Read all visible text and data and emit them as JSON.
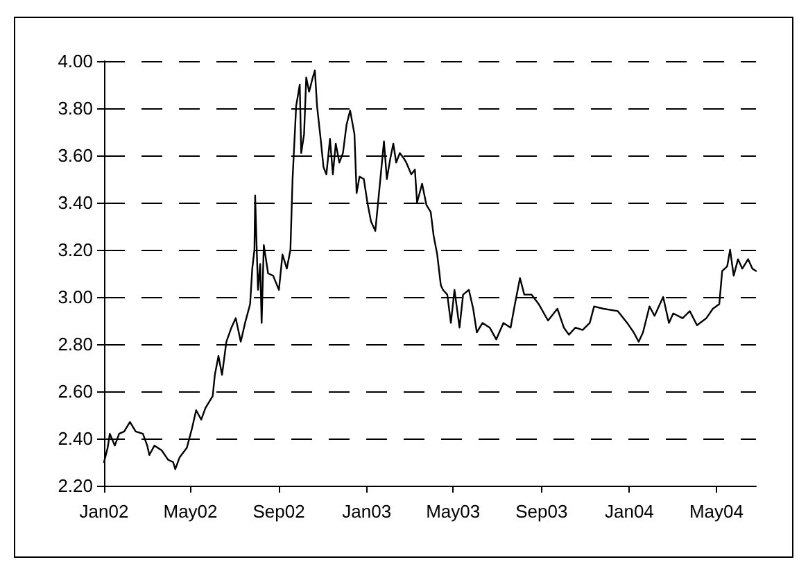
{
  "chart_data": {
    "type": "line",
    "marker": "none",
    "line_style": "solid",
    "grid": "y",
    "xlim": [
      "2002-01-01",
      "2004-06-25"
    ],
    "xticks": [
      {
        "value": "2002-01-01",
        "label": "Jan02"
      },
      {
        "value": "2002-05-01",
        "label": "May02"
      },
      {
        "value": "2002-09-01",
        "label": "Sep02"
      },
      {
        "value": "2003-01-01",
        "label": "Jan03"
      },
      {
        "value": "2003-05-01",
        "label": "May03"
      },
      {
        "value": "2003-09-01",
        "label": "Sep03"
      },
      {
        "value": "2004-01-01",
        "label": "Jan04"
      },
      {
        "value": "2004-05-01",
        "label": "May04"
      }
    ],
    "ylim": [
      2.2,
      4.0
    ],
    "yticks": [
      {
        "value": 2.2,
        "label": "2.20"
      },
      {
        "value": 2.4,
        "label": "2.40"
      },
      {
        "value": 2.6,
        "label": "2.60"
      },
      {
        "value": 2.8,
        "label": "2.80"
      },
      {
        "value": 3.0,
        "label": "3.00"
      },
      {
        "value": 3.2,
        "label": "3.20"
      },
      {
        "value": 3.4,
        "label": "3.40"
      },
      {
        "value": 3.6,
        "label": "3.60"
      },
      {
        "value": 3.8,
        "label": "3.80"
      },
      {
        "value": 4.0,
        "label": "4.00"
      }
    ],
    "x": [
      "2002-01-01",
      "2002-01-06",
      "2002-01-09",
      "2002-01-16",
      "2002-01-22",
      "2002-01-29",
      "2002-02-06",
      "2002-02-14",
      "2002-02-24",
      "2002-03-02",
      "2002-03-05",
      "2002-03-12",
      "2002-03-22",
      "2002-03-31",
      "2002-04-07",
      "2002-04-10",
      "2002-04-16",
      "2002-04-26",
      "2002-05-03",
      "2002-05-09",
      "2002-05-16",
      "2002-05-22",
      "2002-06-01",
      "2002-06-04",
      "2002-06-09",
      "2002-06-14",
      "2002-06-20",
      "2002-06-27",
      "2002-07-03",
      "2002-07-10",
      "2002-07-16",
      "2002-07-23",
      "2002-07-26",
      "2002-07-29",
      "2002-07-30",
      "2002-08-01",
      "2002-08-03",
      "2002-08-06",
      "2002-08-08",
      "2002-08-11",
      "2002-08-17",
      "2002-08-24",
      "2002-09-01",
      "2002-09-06",
      "2002-09-12",
      "2002-09-17",
      "2002-09-20",
      "2002-09-25",
      "2002-09-30",
      "2002-10-02",
      "2002-10-06",
      "2002-10-09",
      "2002-10-13",
      "2002-10-18",
      "2002-10-21",
      "2002-10-24",
      "2002-10-29",
      "2002-11-02",
      "2002-11-06",
      "2002-11-11",
      "2002-11-15",
      "2002-11-19",
      "2002-11-24",
      "2002-11-29",
      "2002-12-04",
      "2002-12-09",
      "2002-12-15",
      "2002-12-18",
      "2002-12-22",
      "2002-12-28",
      "2003-01-02",
      "2003-01-07",
      "2003-01-13",
      "2003-01-20",
      "2003-01-25",
      "2003-01-29",
      "2003-02-03",
      "2003-02-07",
      "2003-02-11",
      "2003-02-16",
      "2003-02-21",
      "2003-02-25",
      "2003-03-04",
      "2003-03-09",
      "2003-03-12",
      "2003-03-19",
      "2003-03-25",
      "2003-03-31",
      "2003-04-04",
      "2003-04-09",
      "2003-04-14",
      "2003-04-17",
      "2003-04-23",
      "2003-04-28",
      "2003-05-03",
      "2003-05-10",
      "2003-05-15",
      "2003-05-23",
      "2003-05-29",
      "2003-06-03",
      "2003-06-11",
      "2003-06-21",
      "2003-06-30",
      "2003-07-10",
      "2003-07-20",
      "2003-07-26",
      "2003-08-02",
      "2003-08-08",
      "2003-08-18",
      "2003-08-28",
      "2003-09-10",
      "2003-09-23",
      "2003-10-02",
      "2003-10-09",
      "2003-10-18",
      "2003-10-28",
      "2003-11-07",
      "2003-11-13",
      "2003-11-26",
      "2003-12-16",
      "2003-12-29",
      "2004-01-07",
      "2004-01-14",
      "2004-01-20",
      "2004-01-29",
      "2004-02-05",
      "2004-02-17",
      "2004-02-25",
      "2004-03-02",
      "2004-03-15",
      "2004-03-25",
      "2004-04-04",
      "2004-04-17",
      "2004-04-26",
      "2004-05-05",
      "2004-05-09",
      "2004-05-16",
      "2004-05-20",
      "2004-05-25",
      "2004-05-31",
      "2004-06-06",
      "2004-06-14",
      "2004-06-20",
      "2004-06-25"
    ],
    "series": [
      {
        "color": "#000000",
        "values": [
          2.3,
          2.36,
          2.42,
          2.37,
          2.42,
          2.43,
          2.47,
          2.43,
          2.42,
          2.37,
          2.33,
          2.37,
          2.35,
          2.31,
          2.3,
          2.27,
          2.32,
          2.36,
          2.44,
          2.52,
          2.48,
          2.53,
          2.58,
          2.67,
          2.75,
          2.67,
          2.81,
          2.87,
          2.91,
          2.81,
          2.89,
          2.97,
          3.12,
          3.2,
          3.43,
          3.22,
          3.03,
          3.14,
          2.89,
          3.22,
          3.1,
          3.09,
          3.03,
          3.18,
          3.12,
          3.2,
          3.5,
          3.81,
          3.9,
          3.61,
          3.69,
          3.93,
          3.87,
          3.93,
          3.96,
          3.81,
          3.67,
          3.55,
          3.52,
          3.67,
          3.52,
          3.65,
          3.57,
          3.61,
          3.73,
          3.79,
          3.69,
          3.44,
          3.51,
          3.5,
          3.4,
          3.32,
          3.28,
          3.5,
          3.66,
          3.5,
          3.59,
          3.65,
          3.57,
          3.61,
          3.59,
          3.57,
          3.52,
          3.54,
          3.4,
          3.48,
          3.39,
          3.36,
          3.26,
          3.18,
          3.05,
          3.03,
          3.01,
          2.89,
          3.03,
          2.87,
          3.01,
          3.03,
          2.95,
          2.85,
          2.89,
          2.87,
          2.82,
          2.89,
          2.87,
          2.97,
          3.08,
          3.01,
          3.01,
          2.97,
          2.9,
          2.95,
          2.87,
          2.84,
          2.87,
          2.86,
          2.89,
          2.96,
          2.95,
          2.94,
          2.89,
          2.85,
          2.81,
          2.85,
          2.96,
          2.92,
          3.0,
          2.89,
          2.93,
          2.91,
          2.94,
          2.88,
          2.91,
          2.95,
          2.97,
          3.11,
          3.13,
          3.2,
          3.09,
          3.16,
          3.12,
          3.16,
          3.12,
          3.11
        ]
      }
    ]
  }
}
